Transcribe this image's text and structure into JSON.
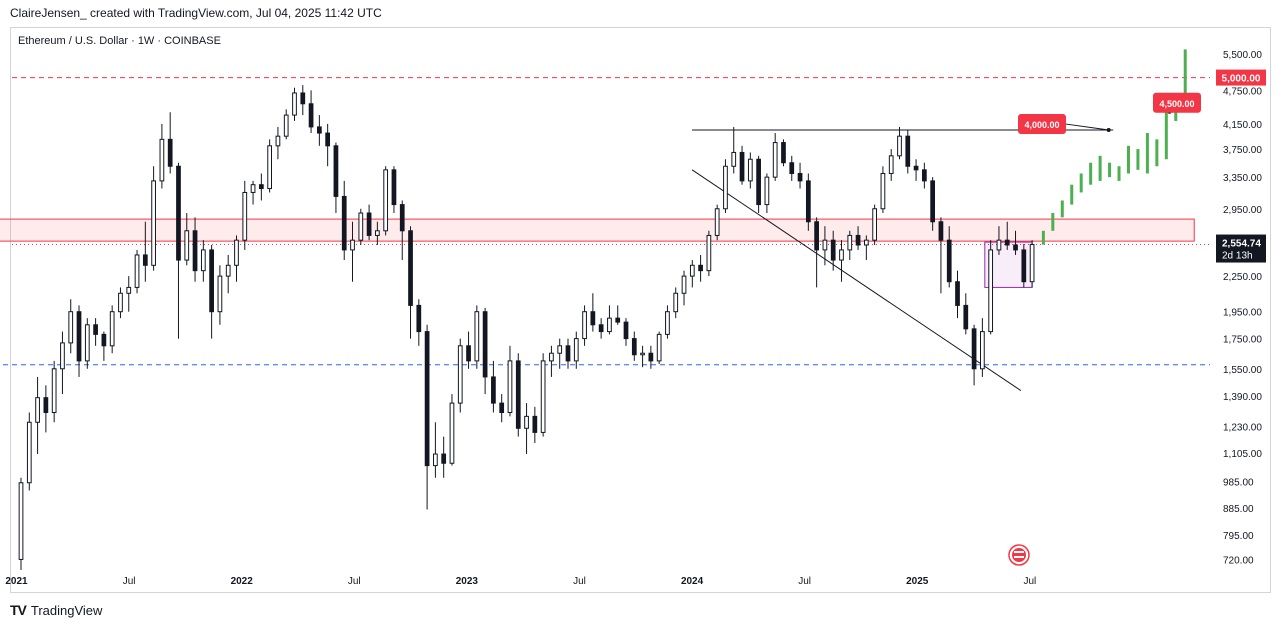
{
  "header": {
    "attribution": "ClaireJensen_ created with TradingView.com, Jul 04, 2025 11:42 UTC"
  },
  "symbol_line": "Ethereum / U.S. Dollar · 1W · COINBASE",
  "footer": {
    "logo_text": "TradingView",
    "logo_icon": "tradingview-logo-icon"
  },
  "colors": {
    "up_candle": "#131722",
    "down_candle": "#131722",
    "projection": "#4caf50",
    "resistance_zone": "#f23645",
    "support_line": "#2962ff",
    "target_label": "#f23645",
    "price_badge": "#131722"
  },
  "chart_data": {
    "type": "candlestick",
    "title": "Ethereum / U.S. Dollar · 1W · COINBASE",
    "x_tick_labels": [
      "2021",
      "Jul",
      "2022",
      "Jul",
      "2023",
      "Jul",
      "2024",
      "Jul",
      "2025",
      "Jul"
    ],
    "x_tick_years": [
      2021,
      2021.5,
      2022,
      2022.5,
      2023,
      2023.5,
      2024,
      2024.5,
      2025,
      2025.5
    ],
    "x_range": [
      2020.98,
      2026.3
    ],
    "y_scale": "log",
    "y_range": [
      690,
      5700
    ],
    "y_tick_labels": [
      "5,500.00",
      "4,750.00",
      "4,150.00",
      "3,750.00",
      "3,350.00",
      "2,950.00",
      "2,250.00",
      "1,950.00",
      "1,750.00",
      "1,550.00",
      "1,390.00",
      "1,230.00",
      "1,105.00",
      "985.00",
      "885.00",
      "795.00",
      "720.00"
    ],
    "y_tick_values": [
      5500,
      4750,
      4150,
      3750,
      3350,
      2950,
      2250,
      1950,
      1750,
      1550,
      1390,
      1230,
      1105,
      985,
      885,
      795,
      720
    ],
    "current_price": {
      "label": "2,554.74",
      "value": 2554.74,
      "countdown": "2d 13h"
    },
    "target_lines": [
      {
        "label": "5,000.00",
        "value": 5000
      }
    ],
    "resistance_zone": {
      "from": 2020.9,
      "to": 2026.23,
      "low": 2590,
      "high": 2830
    },
    "support_level": {
      "value": 1575,
      "from": 2020.9,
      "to": 2026.3
    },
    "range_top_line": {
      "value": 4050,
      "from": 2024.0,
      "to": 2025.87
    },
    "descending_trendline": {
      "x1": 2024.0,
      "y1": 3450,
      "x2": 2025.46,
      "y2": 1420
    },
    "consolidation_box": {
      "from": 2025.3,
      "to": 2025.51,
      "low": 2150,
      "high": 2580
    },
    "annotations": [
      {
        "text": "4,000.00",
        "value": 4000,
        "anchor_x": 2025.85
      },
      {
        "text": "4,500.00",
        "value": 4500,
        "anchor_x": 2026.12
      }
    ],
    "ohlc_weekly": [
      [
        720,
        1000,
        690,
        980
      ],
      [
        980,
        1300,
        950,
        1250
      ],
      [
        1250,
        1500,
        1100,
        1380
      ],
      [
        1380,
        1450,
        1200,
        1300
      ],
      [
        1300,
        1600,
        1250,
        1550
      ],
      [
        1550,
        1800,
        1400,
        1720
      ],
      [
        1720,
        2050,
        1650,
        1950
      ],
      [
        1950,
        2000,
        1500,
        1600
      ],
      [
        1600,
        1900,
        1550,
        1850
      ],
      [
        1850,
        1900,
        1700,
        1780
      ],
      [
        1780,
        1800,
        1600,
        1700
      ],
      [
        1700,
        2000,
        1650,
        1950
      ],
      [
        1950,
        2150,
        1900,
        2100
      ],
      [
        2100,
        2250,
        1950,
        2150
      ],
      [
        2150,
        2500,
        2100,
        2450
      ],
      [
        2450,
        2800,
        2200,
        2350
      ],
      [
        2350,
        3500,
        2300,
        3300
      ],
      [
        3300,
        4150,
        3200,
        3900
      ],
      [
        3900,
        4350,
        3400,
        3500
      ],
      [
        3500,
        3550,
        1750,
        2400
      ],
      [
        2400,
        2900,
        2350,
        2700
      ],
      [
        2700,
        2850,
        2200,
        2300
      ],
      [
        2300,
        2600,
        2200,
        2500
      ],
      [
        2500,
        2550,
        1750,
        1950
      ],
      [
        1950,
        2350,
        1850,
        2250
      ],
      [
        2250,
        2450,
        2100,
        2350
      ],
      [
        2350,
        2650,
        2200,
        2600
      ],
      [
        2600,
        3300,
        2500,
        3150
      ],
      [
        3150,
        3300,
        3000,
        3250
      ],
      [
        3250,
        3400,
        3050,
        3200
      ],
      [
        3200,
        3900,
        3150,
        3800
      ],
      [
        3800,
        4100,
        3600,
        3950
      ],
      [
        3950,
        4400,
        3900,
        4300
      ],
      [
        4300,
        4800,
        4200,
        4700
      ],
      [
        4700,
        4850,
        4300,
        4500
      ],
      [
        4500,
        4750,
        4000,
        4100
      ],
      [
        4100,
        4300,
        3800,
        4000
      ],
      [
        4000,
        4150,
        3500,
        3800
      ],
      [
        3800,
        3850,
        2900,
        3100
      ],
      [
        3100,
        3300,
        2400,
        2500
      ],
      [
        2500,
        2800,
        2200,
        2600
      ],
      [
        2600,
        2950,
        2550,
        2900
      ],
      [
        2900,
        3000,
        2600,
        2650
      ],
      [
        2650,
        2800,
        2550,
        2700
      ],
      [
        2700,
        3500,
        2650,
        3450
      ],
      [
        3450,
        3500,
        2900,
        3000
      ],
      [
        3000,
        3050,
        2400,
        2700
      ],
      [
        2700,
        2750,
        1750,
        2000
      ],
      [
        2000,
        2050,
        1700,
        1800
      ],
      [
        1800,
        1850,
        880,
        1050
      ],
      [
        1050,
        1250,
        1000,
        1100
      ],
      [
        1100,
        1180,
        1000,
        1060
      ],
      [
        1060,
        1400,
        1050,
        1350
      ],
      [
        1350,
        1750,
        1300,
        1700
      ],
      [
        1700,
        1800,
        1550,
        1600
      ],
      [
        1600,
        2000,
        1550,
        1950
      ],
      [
        1950,
        1980,
        1400,
        1500
      ],
      [
        1500,
        1600,
        1300,
        1350
      ],
      [
        1350,
        1400,
        1250,
        1300
      ],
      [
        1300,
        1700,
        1280,
        1600
      ],
      [
        1600,
        1650,
        1180,
        1220
      ],
      [
        1220,
        1350,
        1100,
        1280
      ],
      [
        1280,
        1330,
        1150,
        1200
      ],
      [
        1200,
        1650,
        1180,
        1600
      ],
      [
        1600,
        1700,
        1500,
        1650
      ],
      [
        1650,
        1750,
        1550,
        1700
      ],
      [
        1700,
        1750,
        1550,
        1600
      ],
      [
        1600,
        1800,
        1550,
        1750
      ],
      [
        1750,
        2000,
        1700,
        1950
      ],
      [
        1950,
        2100,
        1800,
        1850
      ],
      [
        1850,
        1900,
        1750,
        1800
      ],
      [
        1800,
        2000,
        1780,
        1900
      ],
      [
        1900,
        2000,
        1850,
        1870
      ],
      [
        1870,
        1900,
        1700,
        1750
      ],
      [
        1750,
        1800,
        1600,
        1640
      ],
      [
        1640,
        1700,
        1560,
        1650
      ],
      [
        1650,
        1700,
        1550,
        1600
      ],
      [
        1600,
        1800,
        1580,
        1780
      ],
      [
        1780,
        2000,
        1750,
        1950
      ],
      [
        1950,
        2150,
        1900,
        2100
      ],
      [
        2100,
        2300,
        2000,
        2250
      ],
      [
        2250,
        2400,
        2150,
        2350
      ],
      [
        2350,
        2450,
        2200,
        2300
      ],
      [
        2300,
        2700,
        2250,
        2650
      ],
      [
        2650,
        3000,
        2600,
        2950
      ],
      [
        2950,
        3600,
        2900,
        3500
      ],
      [
        3500,
        4100,
        3400,
        3700
      ],
      [
        3700,
        3800,
        3250,
        3300
      ],
      [
        3300,
        3700,
        3200,
        3600
      ],
      [
        3600,
        3650,
        2900,
        3000
      ],
      [
        3000,
        3400,
        2900,
        3350
      ],
      [
        3350,
        4000,
        3300,
        3850
      ],
      [
        3850,
        3900,
        3500,
        3550
      ],
      [
        3550,
        3650,
        3300,
        3400
      ],
      [
        3400,
        3550,
        3200,
        3300
      ],
      [
        3300,
        3400,
        2700,
        2800
      ],
      [
        2800,
        2850,
        2150,
        2500
      ],
      [
        2500,
        2750,
        2350,
        2600
      ],
      [
        2600,
        2700,
        2300,
        2400
      ],
      [
        2400,
        2600,
        2200,
        2500
      ],
      [
        2500,
        2700,
        2400,
        2650
      ],
      [
        2650,
        2750,
        2500,
        2550
      ],
      [
        2550,
        2650,
        2400,
        2600
      ],
      [
        2600,
        3000,
        2550,
        2950
      ],
      [
        2950,
        3500,
        2900,
        3400
      ],
      [
        3400,
        3750,
        3300,
        3650
      ],
      [
        3650,
        4100,
        3600,
        3950
      ],
      [
        3950,
        4050,
        3400,
        3500
      ],
      [
        3500,
        3600,
        3300,
        3450
      ],
      [
        3450,
        3550,
        3200,
        3300
      ],
      [
        3300,
        3350,
        2700,
        2800
      ],
      [
        2800,
        2850,
        2100,
        2600
      ],
      [
        2600,
        2750,
        2150,
        2200
      ],
      [
        2200,
        2300,
        1900,
        2000
      ],
      [
        2000,
        2100,
        1780,
        1820
      ],
      [
        1820,
        1850,
        1450,
        1550
      ],
      [
        1550,
        1900,
        1500,
        1800
      ],
      [
        1800,
        2600,
        1780,
        2500
      ],
      [
        2500,
        2750,
        2450,
        2600
      ],
      [
        2600,
        2800,
        2500,
        2550
      ],
      [
        2550,
        2700,
        2450,
        2500
      ],
      [
        2500,
        2560,
        2150,
        2200
      ],
      [
        2200,
        2600,
        2150,
        2554.74
      ]
    ],
    "projection_bars": [
      [
        2554,
        2700
      ],
      [
        2700,
        2900
      ],
      [
        2850,
        3050
      ],
      [
        3000,
        3250
      ],
      [
        3150,
        3400
      ],
      [
        3250,
        3550
      ],
      [
        3300,
        3650
      ],
      [
        3350,
        3550
      ],
      [
        3300,
        3500
      ],
      [
        3400,
        3800
      ],
      [
        3450,
        3750
      ],
      [
        3400,
        4000
      ],
      [
        3500,
        3900
      ],
      [
        3600,
        4350
      ],
      [
        4200,
        4650
      ],
      [
        4500,
        5600
      ]
    ]
  }
}
